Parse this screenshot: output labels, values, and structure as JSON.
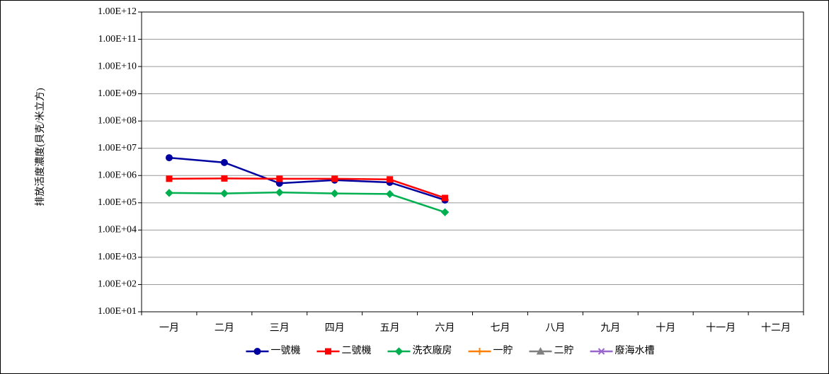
{
  "chart_data": {
    "type": "line",
    "y_label": "排放活度濃度(貝克/米立方)",
    "yscale": "log",
    "categories": [
      "一月",
      "二月",
      "三月",
      "四月",
      "五月",
      "六月",
      "七月",
      "八月",
      "九月",
      "十月",
      "十一月",
      "十二月"
    ],
    "series": [
      {
        "name": "一號機",
        "color": "#0000a0",
        "marker": "circle",
        "values": [
          4500000,
          3000000,
          520000,
          680000,
          560000,
          126000,
          null,
          null,
          null,
          null,
          null,
          null
        ]
      },
      {
        "name": "二號機",
        "color": "#ff0000",
        "marker": "square",
        "values": [
          760000,
          780000,
          760000,
          760000,
          720000,
          150000,
          null,
          null,
          null,
          null,
          null,
          null
        ]
      },
      {
        "name": "洗衣廠房",
        "color": "#00b050",
        "marker": "diamond",
        "values": [
          230000,
          220000,
          240000,
          220000,
          210000,
          45000,
          null,
          null,
          null,
          null,
          null,
          null
        ]
      },
      {
        "name": "一貯",
        "color": "#ff8000",
        "marker": "plus",
        "values": [
          null,
          null,
          null,
          null,
          null,
          null,
          null,
          null,
          null,
          null,
          null,
          null
        ]
      },
      {
        "name": "二貯",
        "color": "#808080",
        "marker": "triangle",
        "values": [
          null,
          null,
          null,
          null,
          null,
          null,
          null,
          null,
          null,
          null,
          null,
          null
        ]
      },
      {
        "name": "廢海水槽",
        "color": "#9966cc",
        "marker": "cross",
        "values": [
          null,
          null,
          null,
          null,
          null,
          null,
          null,
          null,
          null,
          null,
          null,
          null
        ]
      }
    ],
    "ylim": [
      10,
      1000000000000
    ],
    "yticks": [
      {
        "value": 10,
        "label": "1.00E+01"
      },
      {
        "value": 100,
        "label": "1.00E+02"
      },
      {
        "value": 1000,
        "label": "1.00E+03"
      },
      {
        "value": 10000,
        "label": "1.00E+04"
      },
      {
        "value": 100000,
        "label": "1.00E+05"
      },
      {
        "value": 1000000,
        "label": "1.00E+06"
      },
      {
        "value": 10000000,
        "label": "1.00E+07"
      },
      {
        "value": 100000000,
        "label": "1.00E+08"
      },
      {
        "value": 1000000000,
        "label": "1.00E+09"
      },
      {
        "value": 10000000000,
        "label": "1.00E+10"
      },
      {
        "value": 100000000000,
        "label": "1.00E+11"
      },
      {
        "value": 1000000000000,
        "label": "1.00E+12"
      }
    ],
    "grid": true,
    "legend": "bottom"
  }
}
